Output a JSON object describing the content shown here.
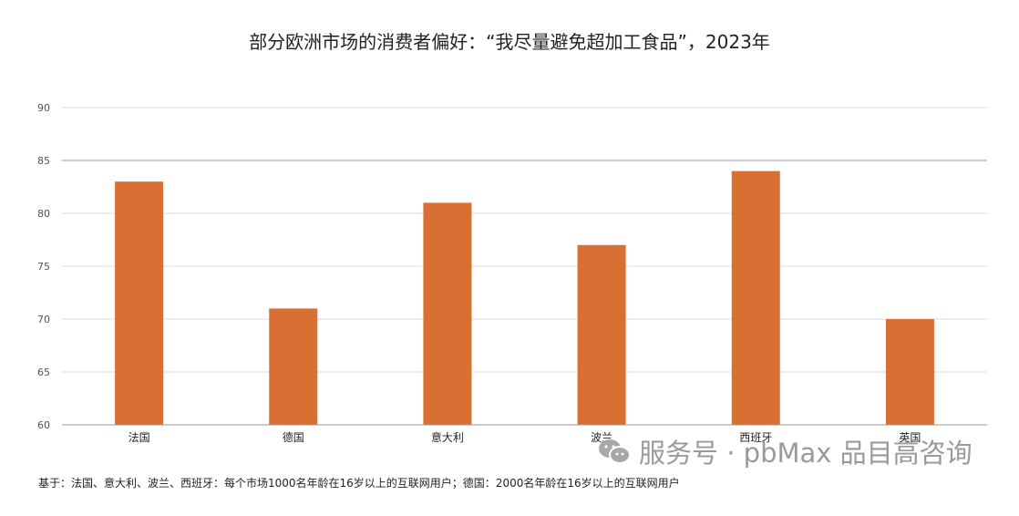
{
  "chart_data": {
    "type": "bar",
    "title": "部分欧洲市场的消费者偏好：“我尽量避免超加工食品”，2023年",
    "categories": [
      "法国",
      "德国",
      "意大利",
      "波兰",
      "西班牙",
      "英国"
    ],
    "values": [
      83,
      71,
      81,
      77,
      84,
      70
    ],
    "ylim": [
      60,
      90
    ],
    "yticks": [
      60,
      65,
      70,
      75,
      80,
      85,
      90
    ],
    "grid": true,
    "legend": "none",
    "bar_color": "#D87033"
  },
  "footnote": "基于：法国、意大利、波兰、西班牙：每个市场1000名年龄在16岁以上的互联网用户；德国：2000名年龄在16岁以上的互联网用户",
  "watermark": {
    "text": "服务号 · pbMax 品目高咨询",
    "icon": "wechat-icon"
  }
}
